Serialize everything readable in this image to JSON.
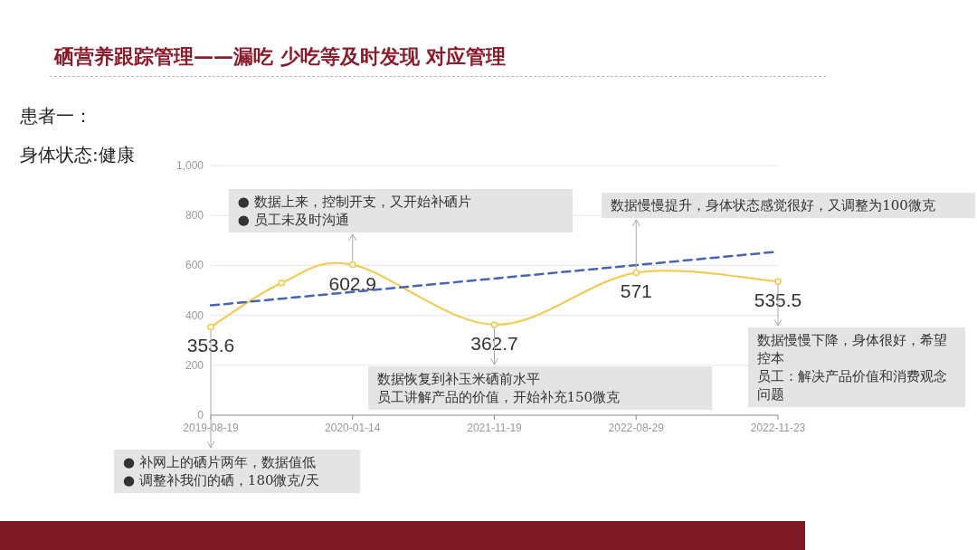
{
  "chart_data": {
    "type": "line",
    "title": "硒营养跟踪管理——漏吃 少吃等及时发现 对应管理",
    "subtitle": "患者一：",
    "categories": [
      "2019-08-19",
      null,
      "2020-01-14",
      null,
      "2021-11-19",
      null,
      "2022-08-29",
      null,
      "2022-11-23"
    ],
    "series": [
      {
        "color": "#f2c94c",
        "values": [
          353.6,
          530,
          602.9,
          null,
          362.7,
          null,
          571,
          null,
          535.5
        ],
        "value_labels": [
          "353.6",
          null,
          "602.9",
          null,
          "362.7",
          null,
          "571",
          null,
          "535.5"
        ],
        "marker": "circle",
        "line_style": "solid"
      },
      {
        "color": "#4a64b4",
        "values": [
          440,
          null,
          null,
          null,
          null,
          null,
          null,
          null,
          655
        ],
        "marker": "none",
        "line_style": "dashed"
      }
    ],
    "ylim": [
      0,
      1000
    ],
    "yticks": [
      0,
      200,
      400,
      600,
      800,
      {
        "value": 1000,
        "label": "1,000"
      }
    ],
    "grid": "y",
    "annotations": [
      "身体状态:健康",
      {
        "text": "● 补网上的硒片两年，数据值低\n● 调整补我们的硒，180微克/天",
        "x": "2019-08-19",
        "y": 353.6
      },
      {
        "text": "● 数据上来，控制开支，又开始补硒片\n● 员工未及时沟通",
        "x": "2020-01-14",
        "y": 602.9
      },
      {
        "text": "数据恢复到补玉米硒前水平",
        "x": "2021-11-19",
        "y": 362.7
      },
      "员工讲解产品的价值，开始补充150微克",
      {
        "text": "数据慢慢提升，身体状态感觉很好，又调整为100微克",
        "x": "2022-08-29",
        "y": 571
      },
      {
        "text": "数据慢慢下降，身体很好，希望控本",
        "x": "2022-11-23",
        "y": 535.5
      },
      "员工：解决产品价值和消费观念问题"
    ]
  }
}
